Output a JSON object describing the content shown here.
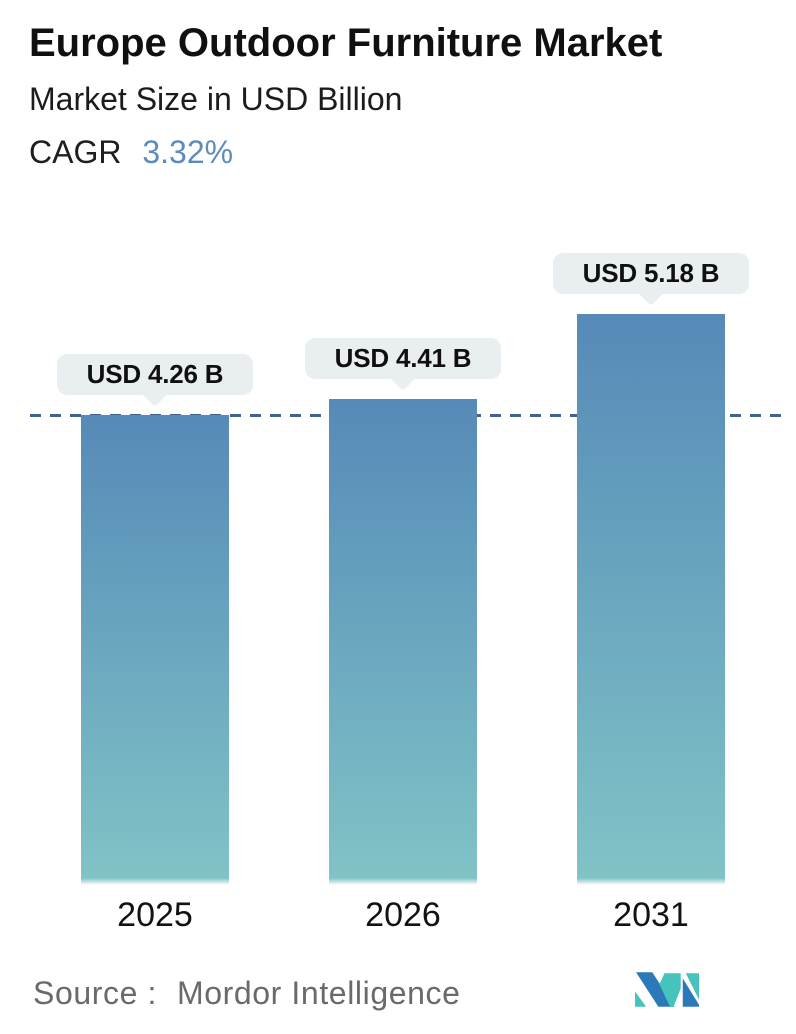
{
  "header": {
    "title": "Europe Outdoor Furniture Market",
    "subtitle": "Market Size in USD Billion",
    "cagr_label": "CAGR",
    "cagr_value": "3.32%"
  },
  "chart_data": {
    "type": "bar",
    "categories": [
      "2025",
      "2026",
      "2031"
    ],
    "values": [
      4.26,
      4.41,
      5.18
    ],
    "value_labels": [
      "USD 4.26 B",
      "USD 4.41 B",
      "USD 5.18 B"
    ],
    "title": "Europe Outdoor Furniture Market",
    "ylabel": "Market Size in USD Billion",
    "ylim": [
      0,
      5.18
    ],
    "grid": false,
    "legend": false,
    "reference_line_value": 4.26,
    "reference_line_style": "dashed",
    "colors": {
      "bar_gradient_top": "#568ab8",
      "bar_gradient_bottom": "#80c3c6",
      "dashed_line": "#41648e",
      "callout_bg": "#e9eef1",
      "cagr_value_text": "#5d8cba"
    }
  },
  "footer": {
    "source_label": "Source :",
    "source_value": "Mordor Intelligence",
    "logo": {
      "name": "mordor-intelligence-logo",
      "blue": "#2b79b9",
      "teal": "#46c3bc"
    }
  }
}
